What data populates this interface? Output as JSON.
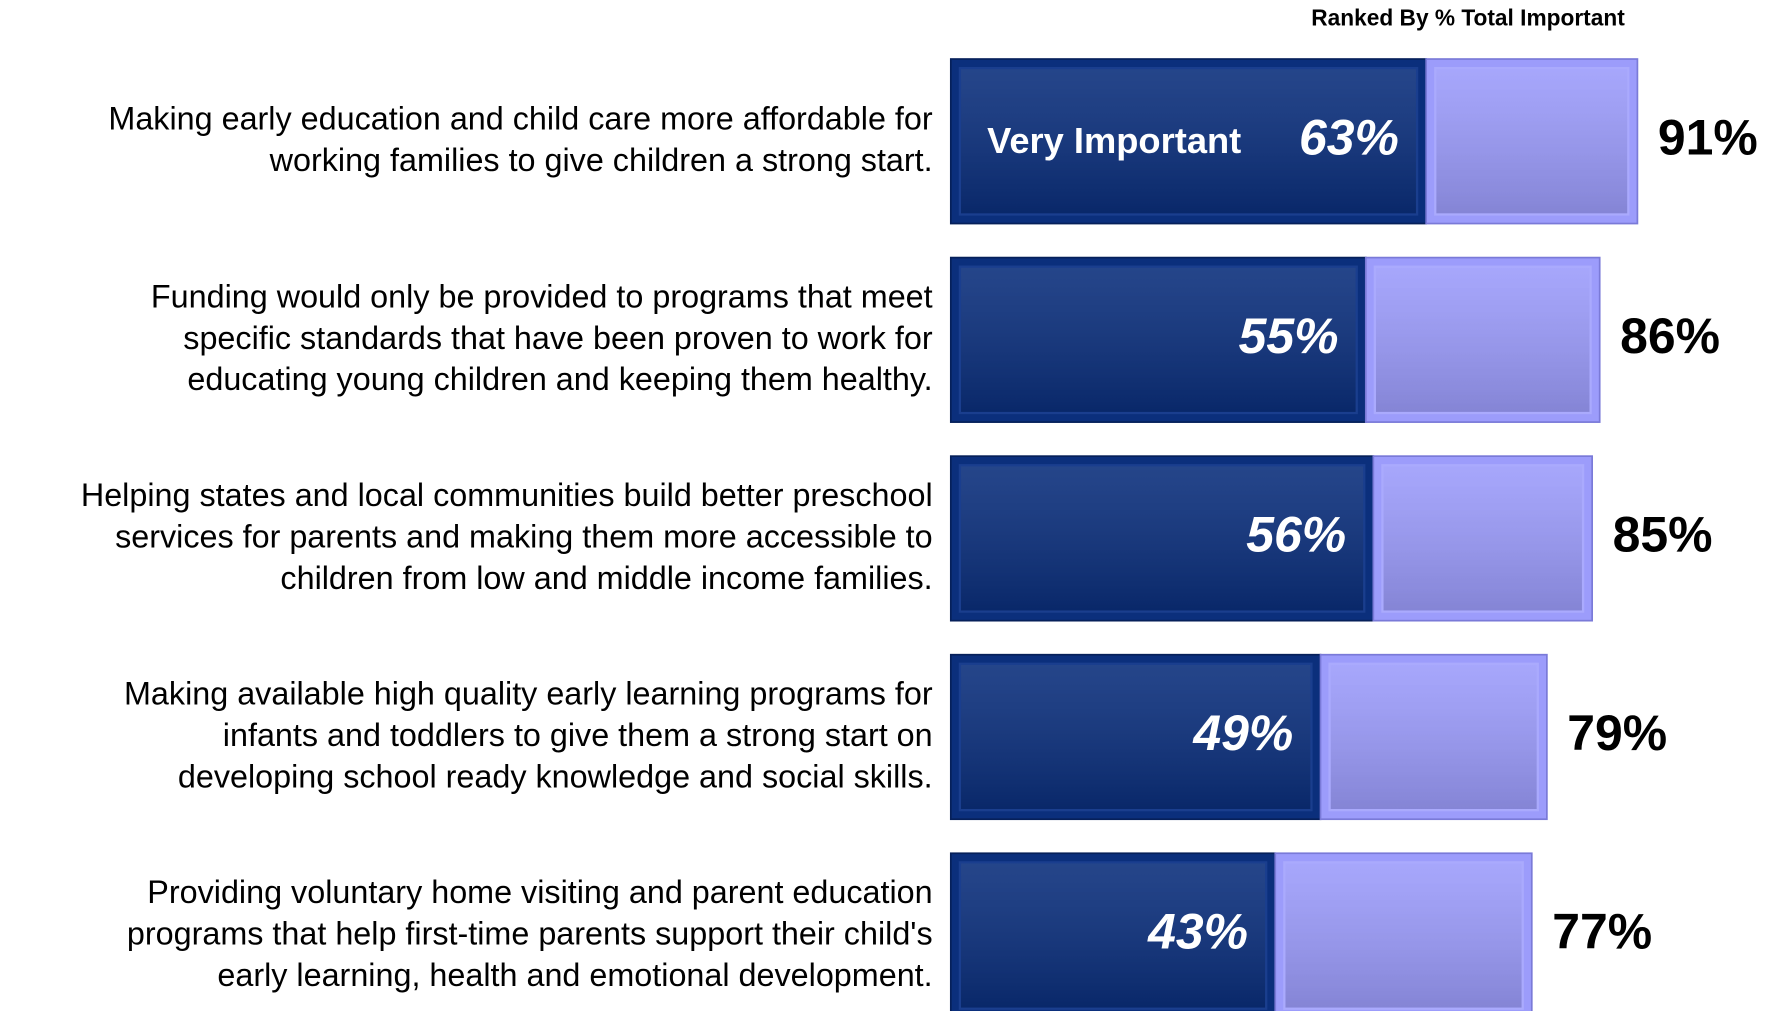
{
  "chart_data": {
    "type": "stacked-horizontal-bar",
    "title": "Ranked By % Total Important",
    "categories": [
      [
        "Making early education and child care more affordable for",
        "working families to give children a strong start."
      ],
      [
        "Funding would only be provided to programs that meet",
        "specific standards that have been proven to work for",
        "educating young children and keeping them healthy."
      ],
      [
        "Helping states and local communities build better preschool",
        "services for parents and making them more accessible to",
        "children from low and middle income families."
      ],
      [
        "Making available high quality early learning programs for",
        "infants and toddlers to give them a strong start on",
        "developing school ready knowledge and social skills."
      ],
      [
        "Providing voluntary home visiting and parent education",
        "programs that help first-time parents support their child's",
        "early learning, health and emotional development."
      ]
    ],
    "series": [
      {
        "name": "Very Important",
        "color": "#0b2f7c",
        "values": [
          63,
          55,
          56,
          49,
          43
        ],
        "value_labels": [
          "63%",
          "55%",
          "56%",
          "49%",
          "43%"
        ]
      },
      {
        "color": "#9c9cfb",
        "values": [
          28,
          31,
          29,
          30,
          34
        ]
      }
    ],
    "totals": [
      91,
      86,
      85,
      79,
      77
    ],
    "total_labels": [
      "91%",
      "86%",
      "85%",
      "79%",
      "77%"
    ]
  }
}
